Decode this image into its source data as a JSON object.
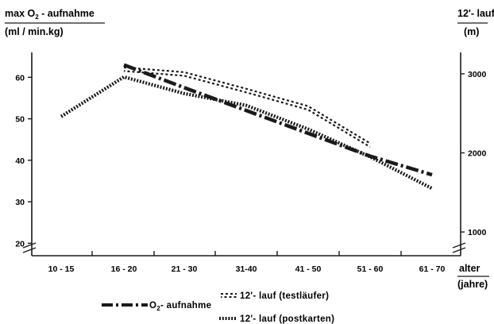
{
  "chart_data": {
    "type": "line",
    "left_axis": {
      "title_prefix": "max O",
      "title_sub": "2",
      "title_suffix": " - aufnahme",
      "unit": "(ml / min.kg)",
      "ticks": [
        20,
        30,
        40,
        50,
        60
      ],
      "tick_labels": [
        "20",
        "30",
        "40",
        "50",
        "60"
      ],
      "range": [
        17,
        66
      ]
    },
    "right_axis": {
      "title": "12'- lauf",
      "unit": "(m)",
      "ticks": [
        1000,
        2000,
        3000
      ],
      "tick_labels": [
        "1000",
        "2000",
        "3000"
      ],
      "range": [
        700,
        3270
      ]
    },
    "x_axis": {
      "title": "alter",
      "unit": "(jahre)"
    },
    "categories": [
      "10 - 15",
      "16 - 20",
      "21 - 30",
      "31-40",
      "41 - 50",
      "51 - 60",
      "61 - 70"
    ],
    "series": [
      {
        "name_prefix": "O",
        "name_sub": "2",
        "name_suffix": "- aufnahme",
        "axis": "left",
        "style": "dash-dot",
        "values": [
          null,
          63,
          57.5,
          52,
          46.5,
          41,
          36.5
        ]
      },
      {
        "name": "12'- lauf (testläufer)",
        "axis": "right",
        "style": "double-dashed",
        "values": [
          null,
          3060,
          3000,
          2790,
          2570,
          2100,
          null
        ]
      },
      {
        "name": "12'- lauf (postkarten)",
        "axis": "right",
        "style": "dotted",
        "values": [
          2460,
          2960,
          2750,
          2600,
          2300,
          1950,
          1550
        ]
      }
    ],
    "grid": false,
    "legend_position": "bottom"
  }
}
